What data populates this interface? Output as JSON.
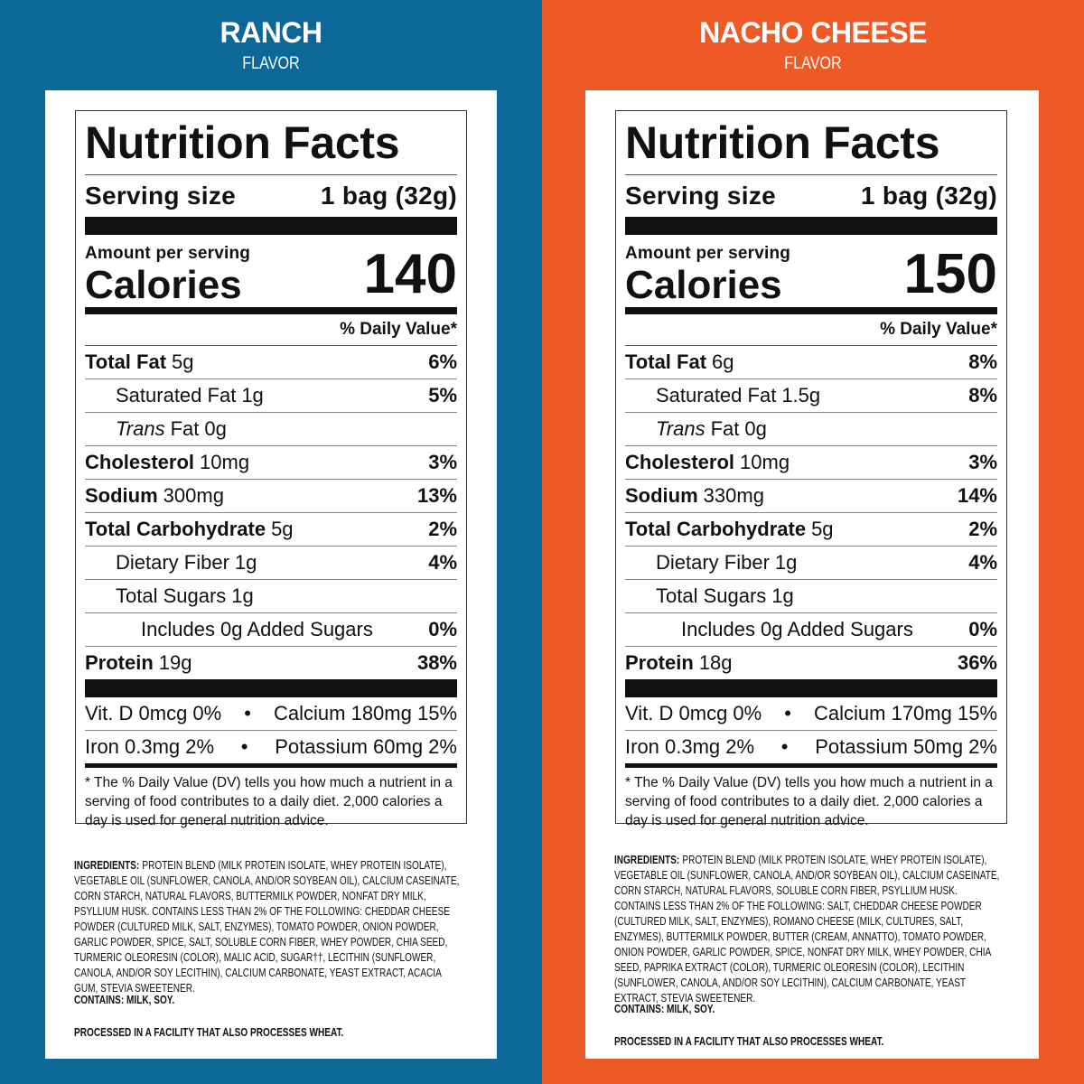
{
  "panels": [
    {
      "flavor": "RANCH",
      "flavor_sub": "FLAVOR",
      "label": {
        "title": "Nutrition Facts",
        "serving_label": "Serving size",
        "serving_value": "1 bag (32g)",
        "amount_per_serving": "Amount per serving",
        "calories_label": "Calories",
        "calories_value": 140,
        "dv_header": "% Daily Value*",
        "nutrients": [
          {
            "name": "Total Fat",
            "amount": "5g",
            "dv": "6%",
            "sub": [
              {
                "name": "Saturated Fat",
                "amount": "1g",
                "dv": "5%"
              },
              {
                "name_italic": "Trans",
                "name": "Fat",
                "amount": "0g"
              }
            ]
          },
          {
            "name": "Cholesterol",
            "amount": "10mg",
            "dv": "3%"
          },
          {
            "name": "Sodium",
            "amount": "300mg",
            "dv": "13%"
          },
          {
            "name": "Total Carbohydrate",
            "amount": "5g",
            "dv": "2%",
            "sub": [
              {
                "name": "Dietary Fiber",
                "amount": "1g",
                "dv": "4%"
              },
              {
                "name": "Total Sugars",
                "amount": "1g",
                "sub": [
                  {
                    "name": "Includes 0g Added Sugars",
                    "dv": "0%"
                  }
                ]
              }
            ]
          },
          {
            "name": "Protein",
            "amount": "19g",
            "dv": "38%"
          }
        ],
        "separator": "•",
        "vitamins": [
          [
            "Vit. D 0mcg 0%",
            "Calcium 180mg 15%"
          ],
          [
            "Iron 0.3mg 2%",
            "Potassium 60mg 2%"
          ]
        ],
        "footnote": "* The % Daily Value (DV) tells you how much a nutrient in a serving of food contributes to a daily diet. 2,000 calories a day is used for general nutrition advice."
      },
      "ingredients_label": "INGREDIENTS:",
      "ingredients": "PROTEIN BLEND (MILK PROTEIN ISOLATE, WHEY PROTEIN ISOLATE), VEGETABLE OIL (SUNFLOWER, CANOLA, AND/OR SOYBEAN OIL), CALCIUM CASEINATE, CORN STARCH, NATURAL FLAVORS, BUTTERMILK POWDER, NONFAT DRY MILK, PSYLLIUM HUSK. CONTAINS LESS THAN 2% OF THE FOLLOWING: CHEDDAR CHEESE POWDER (CULTURED MILK, SALT, ENZYMES), TOMATO POWDER, ONION POWDER, GARLIC POWDER, SPICE, SALT, SOLUBLE CORN FIBER, WHEY POWDER, CHIA SEED, TURMERIC OLEORESIN (COLOR), MALIC ACID, SUGAR††, LECITHIN (SUNFLOWER, CANOLA, AND/OR SOY LECITHIN), CALCIUM CARBONATE, YEAST EXTRACT, ACACIA GUM, STEVIA SWEETENER.",
      "contains": "CONTAINS: MILK, SOY.",
      "facility": "PROCESSED IN A FACILITY THAT ALSO PROCESSES WHEAT."
    },
    {
      "flavor": "NACHO CHEESE",
      "flavor_sub": "FLAVOR",
      "label": {
        "title": "Nutrition Facts",
        "serving_label": "Serving size",
        "serving_value": "1 bag (32g)",
        "amount_per_serving": "Amount per serving",
        "calories_label": "Calories",
        "calories_value": 150,
        "dv_header": "% Daily Value*",
        "nutrients": [
          {
            "name": "Total Fat",
            "amount": "6g",
            "dv": "8%",
            "sub": [
              {
                "name": "Saturated Fat",
                "amount": "1.5g",
                "dv": "8%"
              },
              {
                "name_italic": "Trans",
                "name": "Fat",
                "amount": "0g"
              }
            ]
          },
          {
            "name": "Cholesterol",
            "amount": "10mg",
            "dv": "3%"
          },
          {
            "name": "Sodium",
            "amount": "330mg",
            "dv": "14%"
          },
          {
            "name": "Total Carbohydrate",
            "amount": "5g",
            "dv": "2%",
            "sub": [
              {
                "name": "Dietary Fiber",
                "amount": "1g",
                "dv": "4%"
              },
              {
                "name": "Total Sugars",
                "amount": "1g",
                "sub": [
                  {
                    "name": "Includes 0g Added Sugars",
                    "dv": "0%"
                  }
                ]
              }
            ]
          },
          {
            "name": "Protein",
            "amount": "18g",
            "dv": "36%"
          }
        ],
        "separator": "•",
        "vitamins": [
          [
            "Vit. D 0mcg 0%",
            "Calcium 170mg 15%"
          ],
          [
            "Iron 0.3mg 2%",
            "Potassium 50mg 2%"
          ]
        ],
        "footnote": "* The % Daily Value (DV) tells you how much a nutrient in a serving of food contributes to a daily diet. 2,000 calories a day is used for general nutrition advice."
      },
      "ingredients_label": "INGREDIENTS:",
      "ingredients": "PROTEIN BLEND (MILK PROTEIN ISOLATE, WHEY PROTEIN ISOLATE), VEGETABLE OIL (SUNFLOWER, CANOLA, AND/OR SOYBEAN OIL), CALCIUM CASEINATE, CORN STARCH, NATURAL FLAVORS, SOLUBLE CORN FIBER, PSYLLIUM HUSK. CONTAINS LESS THAN 2% OF THE FOLLOWING: SALT, CHEDDAR CHEESE POWDER (CULTURED MILK, SALT, ENZYMES), ROMANO CHEESE (MILK, CULTURES, SALT, ENZYMES), BUTTERMILK POWDER, BUTTER (CREAM, ANNATTO), TOMATO POWDER, ONION POWDER, GARLIC POWDER, SPICE, NONFAT DRY MILK, WHEY POWDER, CHIA SEED, PAPRIKA EXTRACT (COLOR), TURMERIC OLEORESIN (COLOR), LECITHIN (SUNFLOWER, CANOLA, AND/OR SOY LECITHIN), CALCIUM CARBONATE, YEAST EXTRACT, STEVIA SWEETENER.",
      "contains": "CONTAINS: MILK, SOY.",
      "facility": "PROCESSED IN A FACILITY THAT ALSO PROCESSES WHEAT."
    }
  ]
}
